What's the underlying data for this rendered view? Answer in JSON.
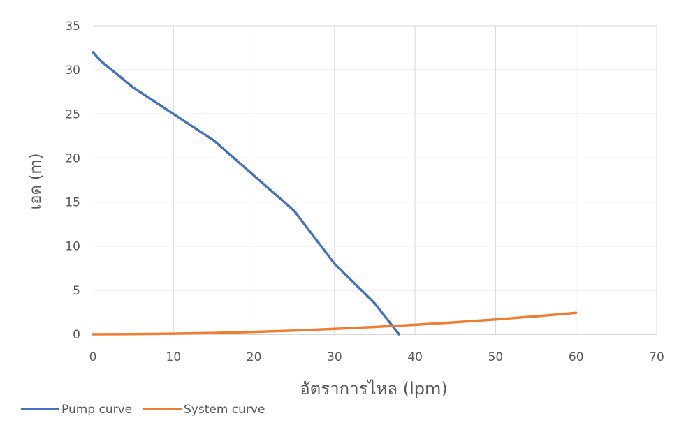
{
  "chart_data": {
    "type": "line",
    "title": "",
    "xlabel": "อัตราการไหล (lpm)",
    "ylabel": "เฮด (m)",
    "xlim": [
      0,
      70
    ],
    "ylim": [
      0,
      35
    ],
    "x_ticks": [
      0,
      10,
      20,
      30,
      40,
      50,
      60,
      70
    ],
    "y_ticks": [
      0,
      5,
      10,
      15,
      20,
      25,
      30,
      35
    ],
    "grid": true,
    "legend_position": "bottom-left",
    "series": [
      {
        "name": "Pump curve",
        "color": "#4472C4",
        "points": [
          [
            0,
            32
          ],
          [
            1,
            31
          ],
          [
            5,
            28
          ],
          [
            10,
            25
          ],
          [
            15,
            22
          ],
          [
            20,
            18
          ],
          [
            25,
            14
          ],
          [
            30,
            8
          ],
          [
            35,
            3.5
          ],
          [
            38,
            0
          ]
        ]
      },
      {
        "name": "System curve",
        "color": "#ED7D31",
        "points": [
          [
            0,
            0
          ],
          [
            5,
            0.02
          ],
          [
            10,
            0.07
          ],
          [
            15,
            0.15
          ],
          [
            20,
            0.27
          ],
          [
            25,
            0.42
          ],
          [
            30,
            0.61
          ],
          [
            35,
            0.83
          ],
          [
            40,
            1.08
          ],
          [
            45,
            1.37
          ],
          [
            50,
            1.69
          ],
          [
            55,
            2.04
          ],
          [
            60,
            2.43
          ]
        ]
      }
    ]
  }
}
